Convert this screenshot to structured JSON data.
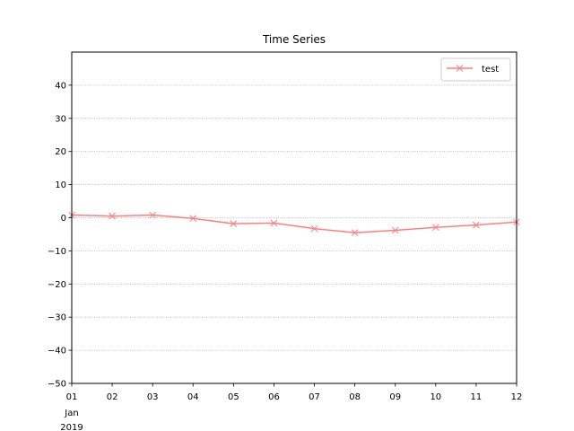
{
  "chart_data": {
    "type": "line",
    "title": "Time Series",
    "xlabel": "",
    "ylabel": "",
    "x": [
      "2019-01-01",
      "2019-01-02",
      "2019-01-03",
      "2019-01-04",
      "2019-01-05",
      "2019-01-06",
      "2019-01-07",
      "2019-01-08",
      "2019-01-09",
      "2019-01-10",
      "2019-01-11",
      "2019-01-12"
    ],
    "x_tick_labels": [
      "01",
      "02",
      "03",
      "04",
      "05",
      "06",
      "07",
      "08",
      "09",
      "10",
      "11",
      "12"
    ],
    "x_tick_sublabels": [
      "Jan",
      "2019"
    ],
    "ylim": [
      -50,
      50
    ],
    "y_ticks": [
      -50,
      -40,
      -30,
      -20,
      -10,
      0,
      10,
      20,
      30,
      40
    ],
    "y_tick_labels": [
      "−50",
      "−40",
      "−30",
      "−20",
      "−10",
      "0",
      "10",
      "20",
      "30",
      "40"
    ],
    "grid": "y-dotted",
    "legend_position": "top-right",
    "series": [
      {
        "name": "test",
        "color": "#ff7f7f",
        "marker": "x",
        "values": [
          0.8,
          0.5,
          0.8,
          -0.2,
          -1.8,
          -1.6,
          -3.3,
          -4.5,
          -3.8,
          -2.9,
          -2.2,
          -1.3
        ]
      }
    ]
  }
}
